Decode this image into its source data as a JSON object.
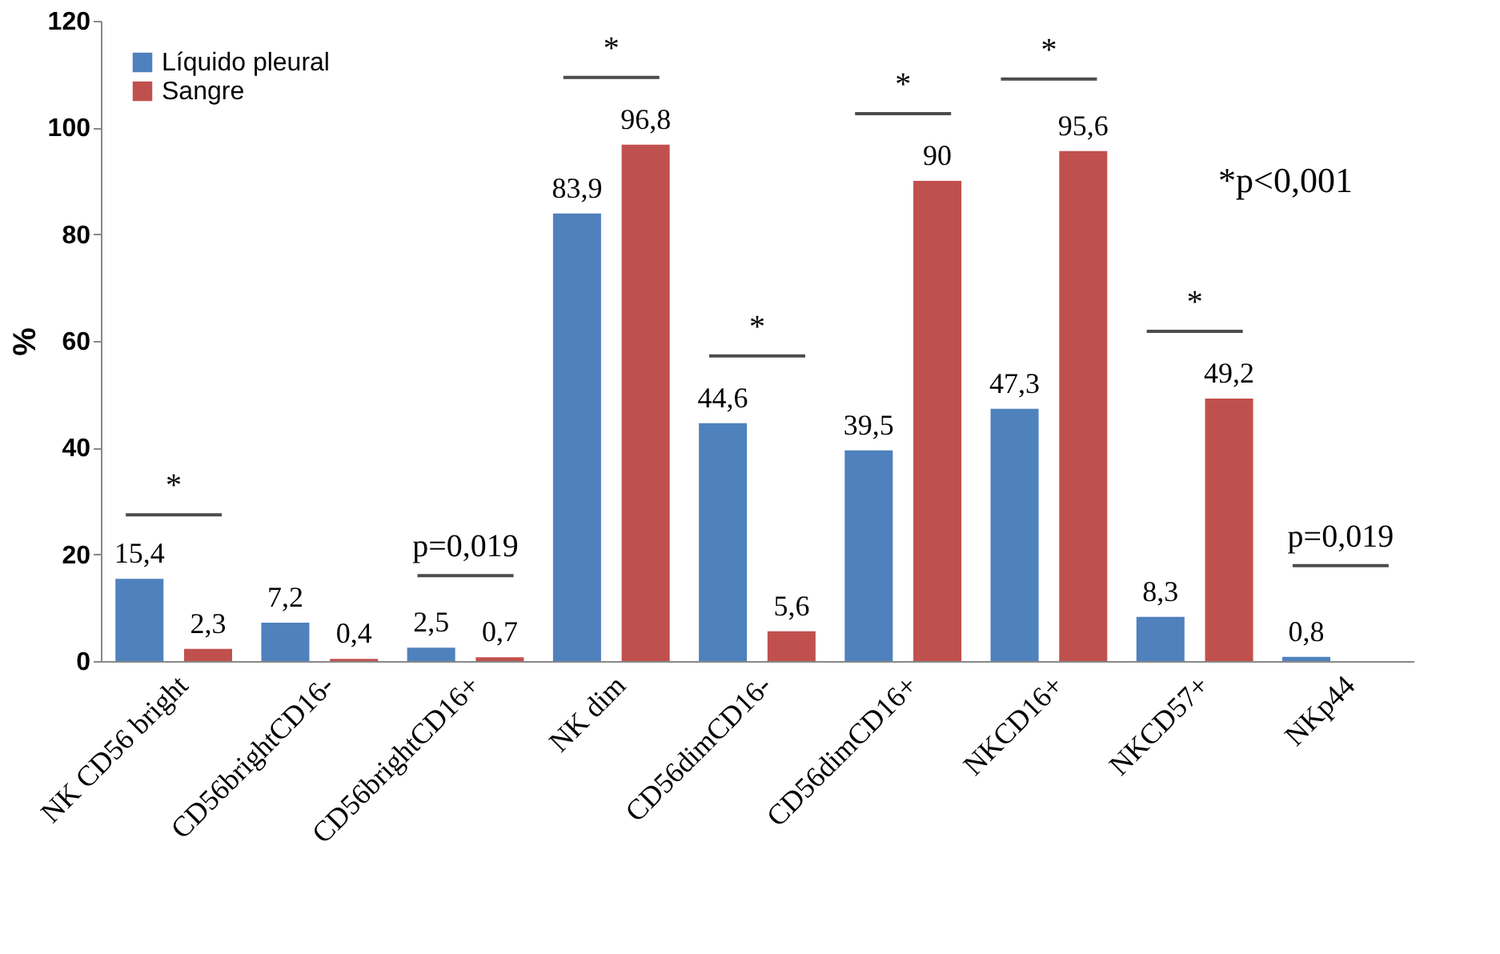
{
  "chart_data": {
    "type": "bar",
    "ylabel": "%",
    "categories": [
      "NK CD56 bright",
      "CD56brightCD16-",
      "CD56brightCD16+",
      "NK dim",
      "CD56dimCD16-",
      "CD56dimCD16+",
      "NKCD16+",
      "NKCD57+",
      "NKp44"
    ],
    "series": [
      {
        "name": "Líquido pleural",
        "color": "#4f81bd",
        "values": [
          15.4,
          7.2,
          2.5,
          83.9,
          44.6,
          39.5,
          47.3,
          8.3,
          0.8
        ],
        "value_labels": [
          "15,4",
          "7,2",
          "2,5",
          "83,9",
          "44,6",
          "39,5",
          "47,3",
          "8,3",
          "0,8"
        ]
      },
      {
        "name": "Sangre",
        "color": "#c0504d",
        "values": [
          2.3,
          0.4,
          0.7,
          96.8,
          5.6,
          90,
          95.6,
          49.2,
          null
        ],
        "value_labels": [
          "2,3",
          "0,4",
          "0,7",
          "96,8",
          "5,6",
          "90",
          "95,6",
          "49,2",
          null
        ]
      }
    ],
    "ylim": [
      0,
      120
    ],
    "yticks": [
      0,
      20,
      40,
      60,
      80,
      100,
      120
    ],
    "grid": false,
    "legend": "top left",
    "annotations": [
      "*",
      "p=0,019",
      "*",
      "*",
      "*",
      "*",
      "*",
      "p=0,019",
      "*p<0,001"
    ]
  }
}
